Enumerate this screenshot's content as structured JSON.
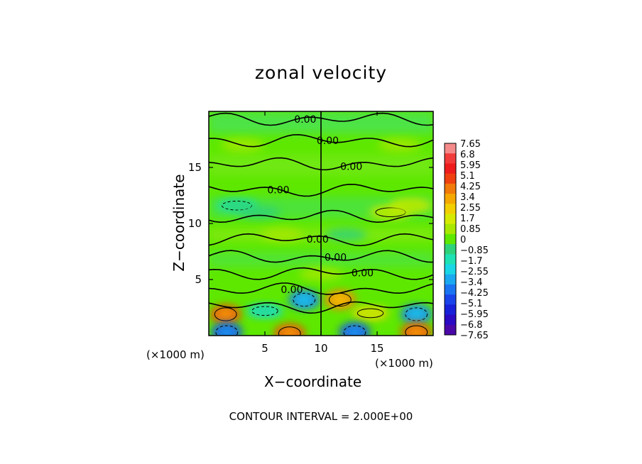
{
  "chart_data": {
    "type": "heatmap",
    "title": "zonal velocity",
    "xlabel": "X−coordinate",
    "ylabel": "Z−coordinate",
    "x_unit": "(×1000 m)",
    "z_unit": "(×1000 m)",
    "xlim": [
      0,
      20
    ],
    "ylim": [
      0,
      20
    ],
    "x_ticks": [
      5,
      10,
      15
    ],
    "y_ticks": [
      5,
      10,
      15
    ],
    "colorbar": {
      "levels": [
        "7.65",
        "6.8",
        "5.95",
        "5.1",
        "4.25",
        "3.4",
        "2.55",
        "1.7",
        "0.85",
        "0",
        "−0.85",
        "−1.7",
        "−2.55",
        "−3.4",
        "−4.25",
        "−5.1",
        "−5.95",
        "−6.8",
        "−7.65"
      ],
      "colors": [
        "#f58a8a",
        "#f23c3c",
        "#ee1c1c",
        "#f04010",
        "#f27a0a",
        "#f5a800",
        "#f2d000",
        "#d6ea00",
        "#a8e800",
        "#5ee800",
        "#2ed27a",
        "#1ee2b4",
        "#18d6e6",
        "#1aa8f0",
        "#1a74f2",
        "#1a44ea",
        "#1820d8",
        "#2a0ac2",
        "#4a08a8"
      ]
    },
    "contour_labels": [
      {
        "text": "0.00",
        "x": 8.6,
        "z": 19.3
      },
      {
        "text": "0.00",
        "x": 10.6,
        "z": 17.4
      },
      {
        "text": "0.00",
        "x": 12.7,
        "z": 15.1
      },
      {
        "text": "0.00",
        "x": 6.2,
        "z": 13.0
      },
      {
        "text": "0.00",
        "x": 9.7,
        "z": 8.6
      },
      {
        "text": "0.00",
        "x": 11.3,
        "z": 7.0
      },
      {
        "text": "0.00",
        "x": 13.7,
        "z": 5.6
      },
      {
        "text": "0.00",
        "x": 7.4,
        "z": 4.1
      }
    ],
    "features": [
      {
        "x": 1.5,
        "z": 1.9,
        "v": 4.8
      },
      {
        "x": 18.5,
        "z": 1.9,
        "v": -4.5
      },
      {
        "x": 8.5,
        "z": 3.2,
        "v": -4.5
      },
      {
        "x": 11.7,
        "z": 3.2,
        "v": 4.5
      },
      {
        "x": 5.0,
        "z": 2.2,
        "v": -2.6
      },
      {
        "x": 14.4,
        "z": 2.0,
        "v": 2.6
      },
      {
        "x": 1.6,
        "z": 0.3,
        "v": -5.0
      },
      {
        "x": 7.2,
        "z": 0.2,
        "v": 5.0
      },
      {
        "x": 13.0,
        "z": 0.3,
        "v": -4.8
      },
      {
        "x": 18.5,
        "z": 0.3,
        "v": 4.8
      },
      {
        "x": 2.5,
        "z": 11.6,
        "v": -1.6
      },
      {
        "x": 4.5,
        "z": 11.0,
        "v": -1.2
      },
      {
        "x": 16.2,
        "z": 11.0,
        "v": 1.6
      },
      {
        "x": 18.0,
        "z": 11.6,
        "v": 1.3
      },
      {
        "x": 6.5,
        "z": 9.0,
        "v": 1.0
      },
      {
        "x": 12.2,
        "z": 9.0,
        "v": -1.0
      },
      {
        "x": 10.0,
        "z": 5.5,
        "v": 0.6
      },
      {
        "x": 3.0,
        "z": 17.0,
        "v": 0.7
      },
      {
        "x": 17.0,
        "z": 17.0,
        "v": 0.6
      }
    ]
  },
  "footer": "CONTOUR INTERVAL = 2.000E+00"
}
